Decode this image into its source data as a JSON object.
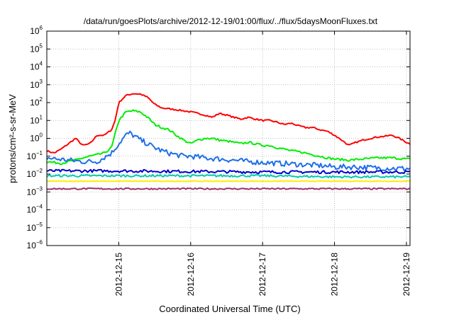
{
  "chart_data": {
    "type": "line",
    "title": "/data/run/goesPlots/archive/2012-12-19/01:00/flux/../flux/5daysMoonFluxes.txt",
    "xlabel": "Coordinated Universal Time (UTC)",
    "ylabel": "protons/cm²-s-sr-MeV",
    "yscale": "log",
    "ylim": [
      1e-06,
      1000000.0
    ],
    "y_tick_exponents": [
      -6,
      -5,
      -4,
      -3,
      -2,
      -1,
      0,
      1,
      2,
      3,
      4,
      5,
      6
    ],
    "xlim": [
      0,
      5.05
    ],
    "x_ticks": [
      {
        "pos": 1,
        "label": "2012-12-15"
      },
      {
        "pos": 2,
        "label": "2012-12-16"
      },
      {
        "pos": 3,
        "label": "2012-12-17"
      },
      {
        "pos": 4,
        "label": "2012-12-18"
      },
      {
        "pos": 5,
        "label": "2012-12-19"
      }
    ],
    "x_unit_note": "days starting 2012-12-14 00:00 UTC",
    "grid": true,
    "series": [
      {
        "color": "#ff0000",
        "noise": 0.04,
        "points": [
          [
            0,
            0.2
          ],
          [
            0.1,
            0.15
          ],
          [
            0.2,
            0.25
          ],
          [
            0.3,
            0.5
          ],
          [
            0.4,
            1.0
          ],
          [
            0.5,
            0.4
          ],
          [
            0.6,
            0.5
          ],
          [
            0.7,
            1.5
          ],
          [
            0.8,
            1.5
          ],
          [
            0.9,
            3.0
          ],
          [
            0.95,
            10
          ],
          [
            1.0,
            100
          ],
          [
            1.1,
            250
          ],
          [
            1.2,
            320
          ],
          [
            1.3,
            300
          ],
          [
            1.4,
            200
          ],
          [
            1.5,
            80
          ],
          [
            1.6,
            50
          ],
          [
            1.7,
            45
          ],
          [
            1.8,
            40
          ],
          [
            1.9,
            35
          ],
          [
            2.0,
            30
          ],
          [
            2.1,
            25
          ],
          [
            2.2,
            20
          ],
          [
            2.3,
            15
          ],
          [
            2.4,
            25
          ],
          [
            2.5,
            20
          ],
          [
            2.6,
            15
          ],
          [
            2.7,
            12
          ],
          [
            2.8,
            15
          ],
          [
            2.9,
            12
          ],
          [
            3.0,
            10
          ],
          [
            3.1,
            10
          ],
          [
            3.2,
            8
          ],
          [
            3.3,
            6
          ],
          [
            3.4,
            7
          ],
          [
            3.5,
            5
          ],
          [
            3.6,
            4
          ],
          [
            3.7,
            4
          ],
          [
            3.8,
            3
          ],
          [
            3.9,
            2.5
          ],
          [
            4.0,
            1.5
          ],
          [
            4.1,
            0.8
          ],
          [
            4.2,
            0.4
          ],
          [
            4.3,
            0.6
          ],
          [
            4.4,
            0.8
          ],
          [
            4.5,
            1.0
          ],
          [
            4.6,
            1.2
          ],
          [
            4.7,
            1.3
          ],
          [
            4.8,
            1.5
          ],
          [
            4.9,
            1.0
          ],
          [
            5.0,
            0.6
          ],
          [
            5.05,
            0.5
          ]
        ]
      },
      {
        "color": "#00ee00",
        "noise": 0.06,
        "points": [
          [
            0,
            0.05
          ],
          [
            0.2,
            0.04
          ],
          [
            0.3,
            0.05
          ],
          [
            0.4,
            0.06
          ],
          [
            0.5,
            0.08
          ],
          [
            0.6,
            0.1
          ],
          [
            0.7,
            0.12
          ],
          [
            0.8,
            0.15
          ],
          [
            0.9,
            0.3
          ],
          [
            1.0,
            10
          ],
          [
            1.1,
            30
          ],
          [
            1.2,
            35
          ],
          [
            1.3,
            30
          ],
          [
            1.4,
            15
          ],
          [
            1.5,
            6
          ],
          [
            1.6,
            4
          ],
          [
            1.7,
            3
          ],
          [
            1.8,
            1.5
          ],
          [
            1.9,
            0.8
          ],
          [
            2.0,
            0.5
          ],
          [
            2.1,
            0.8
          ],
          [
            2.2,
            1.0
          ],
          [
            2.3,
            1.0
          ],
          [
            2.4,
            0.8
          ],
          [
            2.5,
            0.7
          ],
          [
            2.6,
            0.6
          ],
          [
            2.7,
            0.5
          ],
          [
            2.8,
            0.6
          ],
          [
            2.9,
            0.5
          ],
          [
            3.0,
            0.4
          ],
          [
            3.1,
            0.4
          ],
          [
            3.2,
            0.3
          ],
          [
            3.3,
            0.25
          ],
          [
            3.4,
            0.2
          ],
          [
            3.5,
            0.18
          ],
          [
            3.6,
            0.15
          ],
          [
            3.7,
            0.12
          ],
          [
            3.8,
            0.1
          ],
          [
            3.9,
            0.08
          ],
          [
            4.0,
            0.07
          ],
          [
            4.2,
            0.06
          ],
          [
            4.4,
            0.07
          ],
          [
            4.6,
            0.08
          ],
          [
            4.8,
            0.08
          ],
          [
            5.0,
            0.07
          ],
          [
            5.05,
            0.07
          ]
        ]
      },
      {
        "color": "#1f6fe8",
        "noise": 0.15,
        "points": [
          [
            0,
            0.08
          ],
          [
            0.3,
            0.06
          ],
          [
            0.5,
            0.05
          ],
          [
            0.7,
            0.05
          ],
          [
            0.9,
            0.15
          ],
          [
            1.0,
            0.5
          ],
          [
            1.1,
            1.5
          ],
          [
            1.15,
            2.0
          ],
          [
            1.2,
            1.5
          ],
          [
            1.3,
            0.8
          ],
          [
            1.4,
            0.5
          ],
          [
            1.5,
            0.3
          ],
          [
            1.6,
            0.2
          ],
          [
            1.7,
            0.15
          ],
          [
            1.8,
            0.12
          ],
          [
            1.9,
            0.1
          ],
          [
            2.0,
            0.1
          ],
          [
            2.1,
            0.09
          ],
          [
            2.2,
            0.08
          ],
          [
            2.4,
            0.07
          ],
          [
            2.6,
            0.06
          ],
          [
            2.8,
            0.05
          ],
          [
            3.0,
            0.045
          ],
          [
            3.2,
            0.04
          ],
          [
            3.5,
            0.035
          ],
          [
            3.8,
            0.03
          ],
          [
            4.0,
            0.025
          ],
          [
            4.3,
            0.025
          ],
          [
            4.6,
            0.022
          ],
          [
            5.05,
            0.02
          ]
        ]
      },
      {
        "color": "#0000cc",
        "noise": 0.08,
        "points": [
          [
            0,
            0.015
          ],
          [
            1,
            0.015
          ],
          [
            2,
            0.014
          ],
          [
            3,
            0.013
          ],
          [
            4,
            0.013
          ],
          [
            5.05,
            0.013
          ]
        ]
      },
      {
        "color": "#00ccaa",
        "noise": 0.06,
        "points": [
          [
            0,
            0.008
          ],
          [
            1,
            0.008
          ],
          [
            2,
            0.008
          ],
          [
            3,
            0.008
          ],
          [
            4,
            0.007
          ],
          [
            5.05,
            0.007
          ]
        ]
      },
      {
        "color": "#ffee00",
        "noise": 0.02,
        "points": [
          [
            0,
            0.004
          ],
          [
            5.05,
            0.004
          ]
        ]
      },
      {
        "color": "#993366",
        "noise": 0.04,
        "points": [
          [
            0,
            0.0015
          ],
          [
            5.05,
            0.0015
          ]
        ]
      }
    ]
  }
}
